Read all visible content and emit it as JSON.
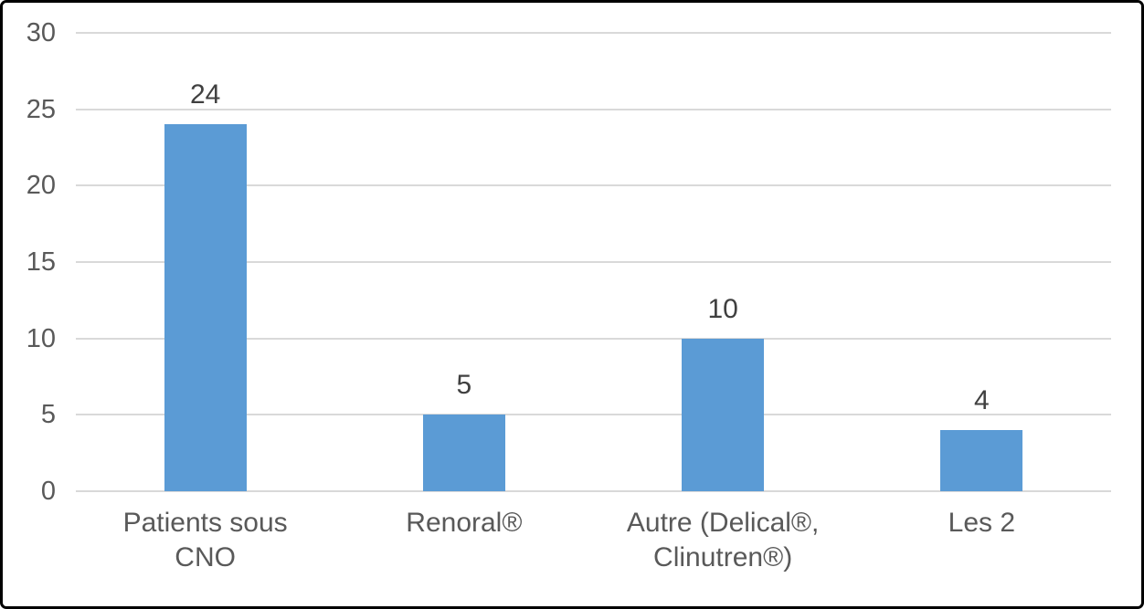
{
  "chart_data": {
    "type": "bar",
    "categories": [
      "Patients sous CNO",
      "Renoral®",
      "Autre (Delical®, Clinutren®)",
      "Les 2"
    ],
    "category_lines": [
      [
        "Patients sous",
        "CNO"
      ],
      [
        "Renoral®"
      ],
      [
        "Autre (Delical®,",
        "Clinutren®)"
      ],
      [
        "Les 2"
      ]
    ],
    "values": [
      24,
      5,
      10,
      4
    ],
    "data_labels": [
      "24",
      "5",
      "10",
      "4"
    ],
    "title": "",
    "xlabel": "",
    "ylabel": "",
    "ylim": [
      0,
      30
    ],
    "yticks": [
      0,
      5,
      10,
      15,
      20,
      25,
      30
    ],
    "grid": true,
    "legend": false,
    "colors": {
      "bar": "#5B9BD5",
      "gridline": "#D9D9D9",
      "axis_line": "#D9D9D9",
      "tick_label": "#595959",
      "category_label": "#595959",
      "data_label": "#404040",
      "frame_border": "#000000",
      "background": "#FFFFFF"
    }
  }
}
